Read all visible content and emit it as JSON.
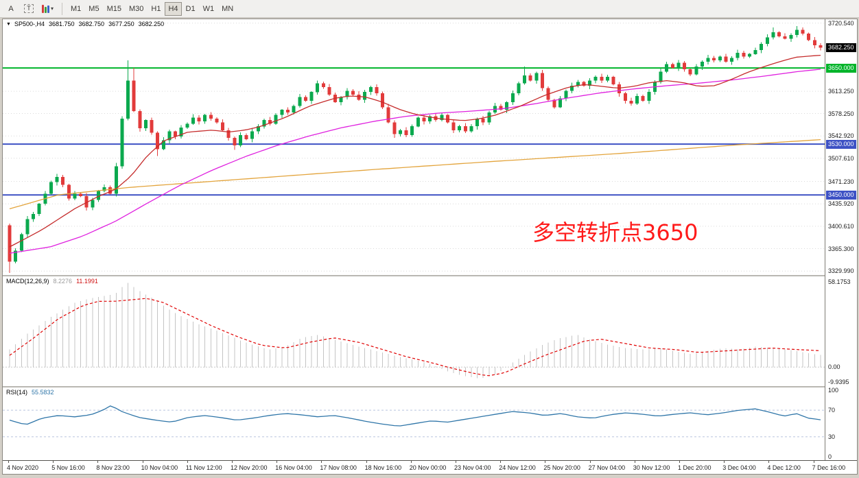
{
  "toolbar": {
    "tools": [
      {
        "name": "arrow-tool",
        "label": "A"
      },
      {
        "name": "text-tool",
        "label": "T"
      },
      {
        "name": "colors-tool",
        "label": "▾"
      }
    ],
    "timeframes": [
      "M1",
      "M5",
      "M15",
      "M30",
      "H1",
      "H4",
      "D1",
      "W1",
      "MN"
    ],
    "active_timeframe": "H4"
  },
  "chart_data": {
    "type": "candlestick",
    "menu_icon": "▼",
    "symbol_period": "SP500-,H4",
    "ohlc": {
      "open": "3681.750",
      "high": "3682.750",
      "low": "3677.250",
      "close": "3682.250"
    },
    "annotation": {
      "text": "多空转折点3650",
      "color": "#ff1a1a"
    },
    "colors": {
      "up": "#0ba94e",
      "down": "#e23b3b",
      "grid": "#d9d9d9"
    },
    "y_axis": {
      "ticks": [
        3720.54,
        3613.25,
        3578.25,
        3542.92,
        3507.61,
        3471.23,
        3435.92,
        3400.61,
        3365.3,
        3329.99
      ],
      "current_price": {
        "value": 3682.25,
        "label": "3682.250",
        "bg": "#000000"
      },
      "level_badges": [
        {
          "value": 3650.0,
          "label": "3650.000",
          "bg": "#00b42a"
        },
        {
          "value": 3530.0,
          "label": "3530.000",
          "bg": "#3d51c4"
        },
        {
          "value": 3450.0,
          "label": "3450.000",
          "bg": "#3d51c4"
        }
      ]
    },
    "levels": [
      {
        "price": 3650.0,
        "color": "#00b42a",
        "width": 2
      },
      {
        "price": 3530.0,
        "color": "#3d51c4",
        "width": 2
      },
      {
        "price": 3450.0,
        "color": "#3d51c4",
        "width": 2
      }
    ],
    "x_axis": {
      "labels": [
        "4 Nov 2020",
        "5 Nov 16:00",
        "8 Nov 23:00",
        "10 Nov 04:00",
        "11 Nov 12:00",
        "12 Nov 20:00",
        "16 Nov 04:00",
        "17 Nov 08:00",
        "18 Nov 16:00",
        "20 Nov 00:00",
        "23 Nov 04:00",
        "24 Nov 12:00",
        "25 Nov 20:00",
        "27 Nov 04:00",
        "30 Nov 12:00",
        "1 Dec 20:00",
        "3 Dec 04:00",
        "4 Dec 12:00",
        "7 Dec 16:00"
      ]
    },
    "candles": {
      "open_first": 3402,
      "closes": [
        3345,
        3362,
        3388,
        3412,
        3420,
        3436,
        3452,
        3470,
        3478,
        3466,
        3444,
        3452,
        3448,
        3430,
        3442,
        3456,
        3462,
        3452,
        3495,
        3570,
        3630,
        3582,
        3555,
        3568,
        3548,
        3522,
        3536,
        3550,
        3542,
        3556,
        3562,
        3572,
        3566,
        3576,
        3570,
        3564,
        3552,
        3540,
        3528,
        3544,
        3538,
        3550,
        3558,
        3568,
        3562,
        3576,
        3584,
        3580,
        3590,
        3604,
        3598,
        3612,
        3626,
        3620,
        3608,
        3596,
        3604,
        3614,
        3608,
        3600,
        3612,
        3620,
        3610,
        3588,
        3564,
        3546,
        3552,
        3544,
        3558,
        3572,
        3566,
        3574,
        3568,
        3576,
        3564,
        3552,
        3558,
        3550,
        3558,
        3570,
        3564,
        3580,
        3590,
        3584,
        3596,
        3610,
        3626,
        3638,
        3630,
        3642,
        3618,
        3600,
        3588,
        3602,
        3614,
        3622,
        3628,
        3622,
        3630,
        3636,
        3630,
        3636,
        3624,
        3610,
        3598,
        3594,
        3606,
        3598,
        3612,
        3628,
        3644,
        3656,
        3650,
        3658,
        3648,
        3640,
        3652,
        3660,
        3666,
        3662,
        3668,
        3660,
        3666,
        3674,
        3668,
        3672,
        3678,
        3688,
        3698,
        3706,
        3700,
        3696,
        3702,
        3710,
        3704,
        3694,
        3686,
        3682.25
      ],
      "wick_overrides": {
        "0": {
          "low": 3327,
          "high": 3405
        },
        "20": {
          "high": 3662
        },
        "21": {
          "high": 3650
        },
        "25": {
          "low": 3511
        },
        "38": {
          "low": 3521
        },
        "65": {
          "low": 3540
        },
        "87": {
          "high": 3652
        },
        "129": {
          "high": 3714
        },
        "133": {
          "high": 3716
        }
      }
    },
    "ma_lines": [
      {
        "name": "ma-slow",
        "color": "#e3a43c",
        "points": [
          [
            0,
            3428
          ],
          [
            0.06,
            3450
          ],
          [
            0.15,
            3462
          ],
          [
            0.3,
            3476
          ],
          [
            0.45,
            3490
          ],
          [
            0.6,
            3503
          ],
          [
            0.75,
            3515
          ],
          [
            0.9,
            3529
          ],
          [
            1,
            3537
          ]
        ]
      },
      {
        "name": "ma-mid",
        "color": "#df20df",
        "points": [
          [
            0,
            3358
          ],
          [
            0.05,
            3368
          ],
          [
            0.09,
            3385
          ],
          [
            0.13,
            3408
          ],
          [
            0.17,
            3437
          ],
          [
            0.21,
            3465
          ],
          [
            0.25,
            3489
          ],
          [
            0.29,
            3510
          ],
          [
            0.33,
            3528
          ],
          [
            0.37,
            3543
          ],
          [
            0.41,
            3556
          ],
          [
            0.45,
            3566
          ],
          [
            0.49,
            3574
          ],
          [
            0.53,
            3579
          ],
          [
            0.57,
            3582
          ],
          [
            0.61,
            3586
          ],
          [
            0.65,
            3594
          ],
          [
            0.69,
            3603
          ],
          [
            0.73,
            3611
          ],
          [
            0.77,
            3617
          ],
          [
            0.81,
            3622
          ],
          [
            0.85,
            3626
          ],
          [
            0.89,
            3631
          ],
          [
            0.93,
            3637
          ],
          [
            0.97,
            3644
          ],
          [
            1,
            3648
          ]
        ]
      },
      {
        "name": "ma-fast",
        "color": "#c52b2b",
        "points": [
          [
            0,
            3368
          ],
          [
            0.04,
            3395
          ],
          [
            0.08,
            3428
          ],
          [
            0.11,
            3448
          ],
          [
            0.13,
            3458
          ],
          [
            0.15,
            3480
          ],
          [
            0.17,
            3512
          ],
          [
            0.19,
            3535
          ],
          [
            0.22,
            3549
          ],
          [
            0.25,
            3552
          ],
          [
            0.27,
            3549
          ],
          [
            0.29,
            3552
          ],
          [
            0.31,
            3558
          ],
          [
            0.34,
            3572
          ],
          [
            0.37,
            3590
          ],
          [
            0.4,
            3602
          ],
          [
            0.42,
            3606
          ],
          [
            0.44,
            3604
          ],
          [
            0.46,
            3596
          ],
          [
            0.48,
            3585
          ],
          [
            0.5,
            3577
          ],
          [
            0.53,
            3570
          ],
          [
            0.56,
            3567
          ],
          [
            0.58,
            3570
          ],
          [
            0.6,
            3576
          ],
          [
            0.63,
            3590
          ],
          [
            0.66,
            3607
          ],
          [
            0.69,
            3620
          ],
          [
            0.71,
            3624
          ],
          [
            0.73,
            3621
          ],
          [
            0.75,
            3618
          ],
          [
            0.77,
            3621
          ],
          [
            0.79,
            3627
          ],
          [
            0.81,
            3630
          ],
          [
            0.83,
            3627
          ],
          [
            0.85,
            3621
          ],
          [
            0.87,
            3622
          ],
          [
            0.89,
            3632
          ],
          [
            0.91,
            3643
          ],
          [
            0.93,
            3652
          ],
          [
            0.95,
            3660
          ],
          [
            0.97,
            3667
          ],
          [
            1,
            3670
          ]
        ]
      }
    ],
    "indicators": {
      "macd": {
        "label": "MACD(12,26,9)",
        "main_value": "8.2276",
        "signal_value": "11.1991",
        "scale": {
          "max": "58.1753",
          "zero": "0.00",
          "min": "-9.9395"
        },
        "histogram_color": "#c4c4c4",
        "signal_color": "#e00000",
        "histogram": [
          [
            0,
            12
          ],
          [
            0.02,
            22
          ],
          [
            0.05,
            34
          ],
          [
            0.08,
            44
          ],
          [
            0.1,
            47
          ],
          [
            0.13,
            50
          ],
          [
            0.145,
            58
          ],
          [
            0.16,
            52
          ],
          [
            0.18,
            46
          ],
          [
            0.2,
            38
          ],
          [
            0.23,
            30
          ],
          [
            0.26,
            24
          ],
          [
            0.29,
            17
          ],
          [
            0.32,
            12
          ],
          [
            0.34,
            14
          ],
          [
            0.36,
            20
          ],
          [
            0.38,
            22
          ],
          [
            0.4,
            19
          ],
          [
            0.43,
            14
          ],
          [
            0.46,
            10
          ],
          [
            0.48,
            7
          ],
          [
            0.5,
            5
          ],
          [
            0.52,
            2
          ],
          [
            0.54,
            -3
          ],
          [
            0.56,
            -6
          ],
          [
            0.58,
            -8
          ],
          [
            0.6,
            -5
          ],
          [
            0.62,
            3
          ],
          [
            0.64,
            10
          ],
          [
            0.66,
            16
          ],
          [
            0.68,
            20
          ],
          [
            0.7,
            22
          ],
          [
            0.72,
            18
          ],
          [
            0.74,
            15
          ],
          [
            0.76,
            13
          ],
          [
            0.78,
            12
          ],
          [
            0.8,
            13
          ],
          [
            0.82,
            11
          ],
          [
            0.84,
            9
          ],
          [
            0.86,
            11
          ],
          [
            0.88,
            13
          ],
          [
            0.9,
            12
          ],
          [
            0.92,
            14
          ],
          [
            0.94,
            13
          ],
          [
            0.96,
            12
          ],
          [
            0.98,
            10
          ],
          [
            1,
            8.23
          ]
        ],
        "signal": [
          [
            0,
            8
          ],
          [
            0.03,
            20
          ],
          [
            0.06,
            33
          ],
          [
            0.09,
            42
          ],
          [
            0.11,
            45
          ],
          [
            0.13,
            45
          ],
          [
            0.15,
            46
          ],
          [
            0.17,
            47
          ],
          [
            0.19,
            44
          ],
          [
            0.22,
            36
          ],
          [
            0.25,
            28
          ],
          [
            0.28,
            21
          ],
          [
            0.31,
            15
          ],
          [
            0.34,
            13
          ],
          [
            0.37,
            17
          ],
          [
            0.4,
            20
          ],
          [
            0.43,
            17
          ],
          [
            0.46,
            12
          ],
          [
            0.49,
            7
          ],
          [
            0.52,
            3
          ],
          [
            0.54,
            0
          ],
          [
            0.57,
            -4
          ],
          [
            0.59,
            -6
          ],
          [
            0.61,
            -4
          ],
          [
            0.63,
            1
          ],
          [
            0.66,
            8
          ],
          [
            0.69,
            14
          ],
          [
            0.71,
            18
          ],
          [
            0.73,
            19
          ],
          [
            0.76,
            16
          ],
          [
            0.79,
            13
          ],
          [
            0.82,
            12
          ],
          [
            0.85,
            10
          ],
          [
            0.88,
            11
          ],
          [
            0.91,
            12
          ],
          [
            0.94,
            13
          ],
          [
            0.97,
            12
          ],
          [
            1,
            11.2
          ]
        ]
      },
      "rsi": {
        "label": "RSI(14)",
        "value": "55.5832",
        "line_color": "#2e75a8",
        "level_line_color": "#b7c3de",
        "scale_labels": [
          "100",
          "70",
          "30",
          "0"
        ],
        "levels": [
          70,
          30
        ],
        "points": [
          [
            0,
            55
          ],
          [
            0.02,
            48
          ],
          [
            0.04,
            58
          ],
          [
            0.06,
            62
          ],
          [
            0.08,
            60
          ],
          [
            0.1,
            63
          ],
          [
            0.115,
            70
          ],
          [
            0.125,
            77
          ],
          [
            0.14,
            67
          ],
          [
            0.16,
            59
          ],
          [
            0.18,
            55
          ],
          [
            0.2,
            52
          ],
          [
            0.22,
            59
          ],
          [
            0.24,
            62
          ],
          [
            0.26,
            59
          ],
          [
            0.28,
            55
          ],
          [
            0.3,
            58
          ],
          [
            0.32,
            62
          ],
          [
            0.34,
            65
          ],
          [
            0.36,
            63
          ],
          [
            0.38,
            60
          ],
          [
            0.4,
            62
          ],
          [
            0.42,
            58
          ],
          [
            0.44,
            53
          ],
          [
            0.46,
            49
          ],
          [
            0.48,
            46
          ],
          [
            0.5,
            50
          ],
          [
            0.52,
            54
          ],
          [
            0.54,
            52
          ],
          [
            0.56,
            56
          ],
          [
            0.58,
            60
          ],
          [
            0.6,
            64
          ],
          [
            0.62,
            68
          ],
          [
            0.64,
            66
          ],
          [
            0.66,
            62
          ],
          [
            0.68,
            65
          ],
          [
            0.7,
            60
          ],
          [
            0.72,
            58
          ],
          [
            0.74,
            63
          ],
          [
            0.76,
            66
          ],
          [
            0.78,
            64
          ],
          [
            0.8,
            61
          ],
          [
            0.82,
            64
          ],
          [
            0.84,
            66
          ],
          [
            0.86,
            63
          ],
          [
            0.88,
            66
          ],
          [
            0.9,
            70
          ],
          [
            0.92,
            72
          ],
          [
            0.94,
            66
          ],
          [
            0.955,
            61
          ],
          [
            0.97,
            65
          ],
          [
            0.985,
            58
          ],
          [
            1,
            55.58
          ]
        ]
      }
    }
  }
}
